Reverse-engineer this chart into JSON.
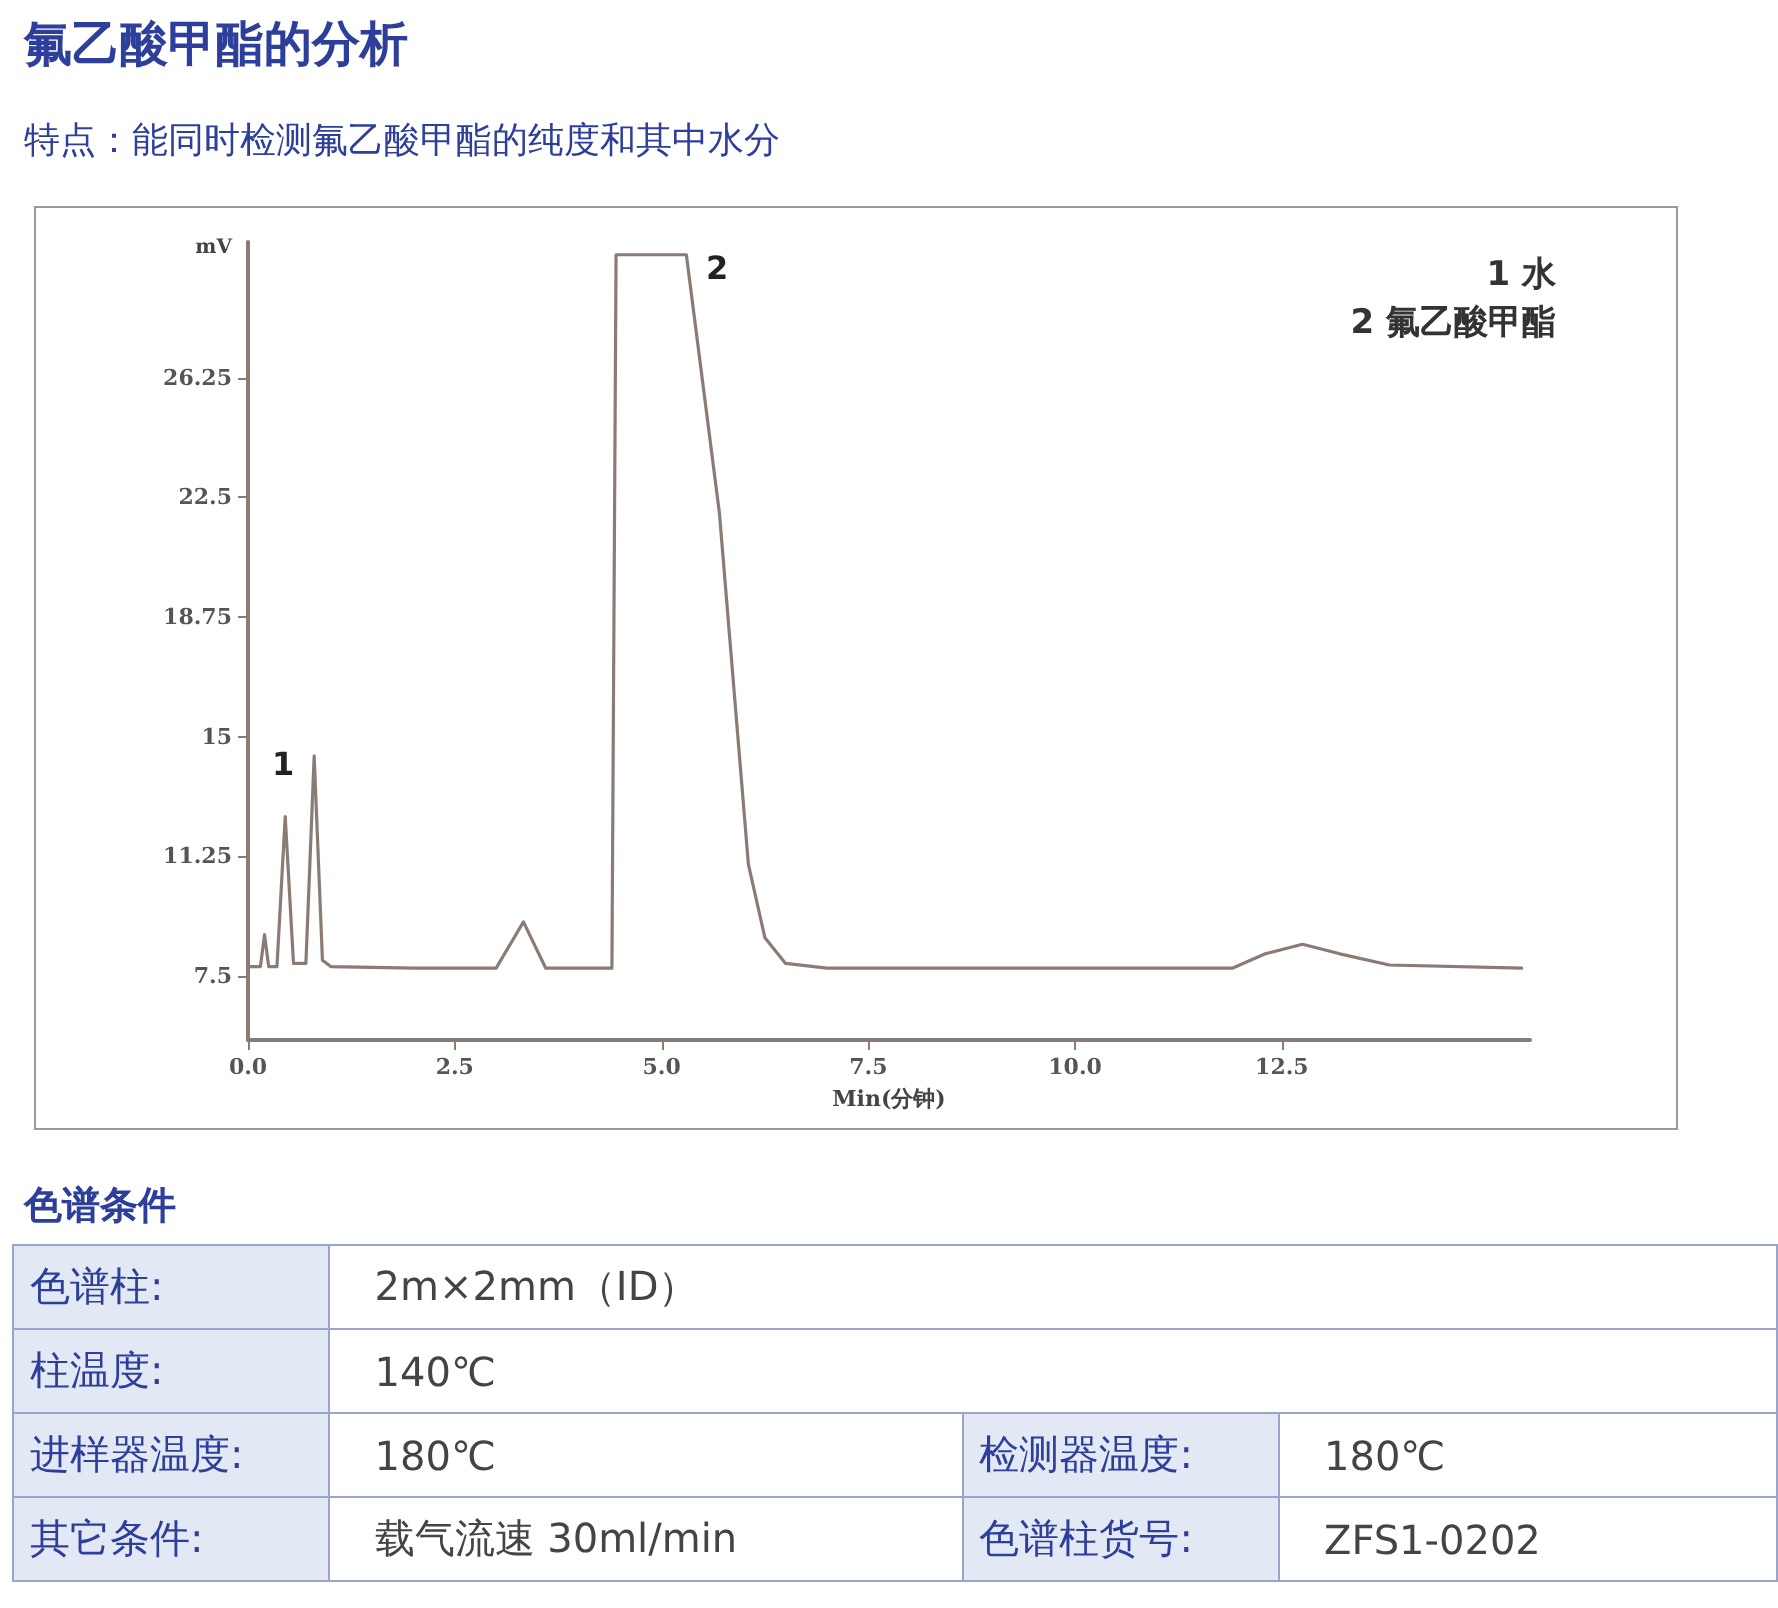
{
  "chart_data": {
    "type": "line",
    "title": "氟乙酸甲酯的分析",
    "subtitle": "特点：能同时检测氟乙酸甲酯的纯度和其中水分",
    "xlabel": "Min(分钟)",
    "ylabel": "mV",
    "x": [
      0,
      0.15,
      0.2,
      0.25,
      0.35,
      0.45,
      0.55,
      0.7,
      0.8,
      0.9,
      1.0,
      2.0,
      3.0,
      3.33,
      3.6,
      4.4,
      4.45,
      5.3,
      5.7,
      6.05,
      6.25,
      6.5,
      7.0,
      11.9,
      12.3,
      12.75,
      13.2,
      13.8,
      15.4
    ],
    "series": [
      {
        "color": "#8a7b74",
        "values": [
          7.8,
          7.8,
          8.8,
          7.8,
          7.8,
          12.5,
          7.9,
          7.9,
          14.4,
          8.0,
          7.8,
          7.75,
          7.75,
          9.2,
          7.75,
          7.75,
          30.1,
          30.1,
          22,
          11,
          8.7,
          7.9,
          7.75,
          7.75,
          8.2,
          8.5,
          8.2,
          7.85,
          7.75
        ]
      }
    ],
    "xlim": [
      0,
      15.5
    ],
    "xticks": [
      {
        "value": 0,
        "label": "0.0"
      },
      2.5,
      {
        "value": 5,
        "label": "5.0"
      },
      7.5,
      {
        "value": 10,
        "label": "10.0"
      },
      12.5
    ],
    "ylim": [
      5.5,
      30.5
    ],
    "yticks": [
      7.5,
      11.25,
      15,
      18.75,
      22.5,
      26.25
    ],
    "grid": false,
    "marker": "none",
    "line_style": "solid",
    "annotations": [
      "1",
      "2",
      "1 水",
      "2 氟乙酸甲酯",
      "色谱条件",
      "色谱柱:",
      "2m×2mm（ID）",
      "柱温度:",
      "140℃",
      "进样器温度:",
      "180℃",
      "检测器温度:",
      "180℃",
      "其它条件:",
      "载气流速 30ml/min",
      "色谱柱货号:",
      "ZFS1-0202"
    ]
  }
}
